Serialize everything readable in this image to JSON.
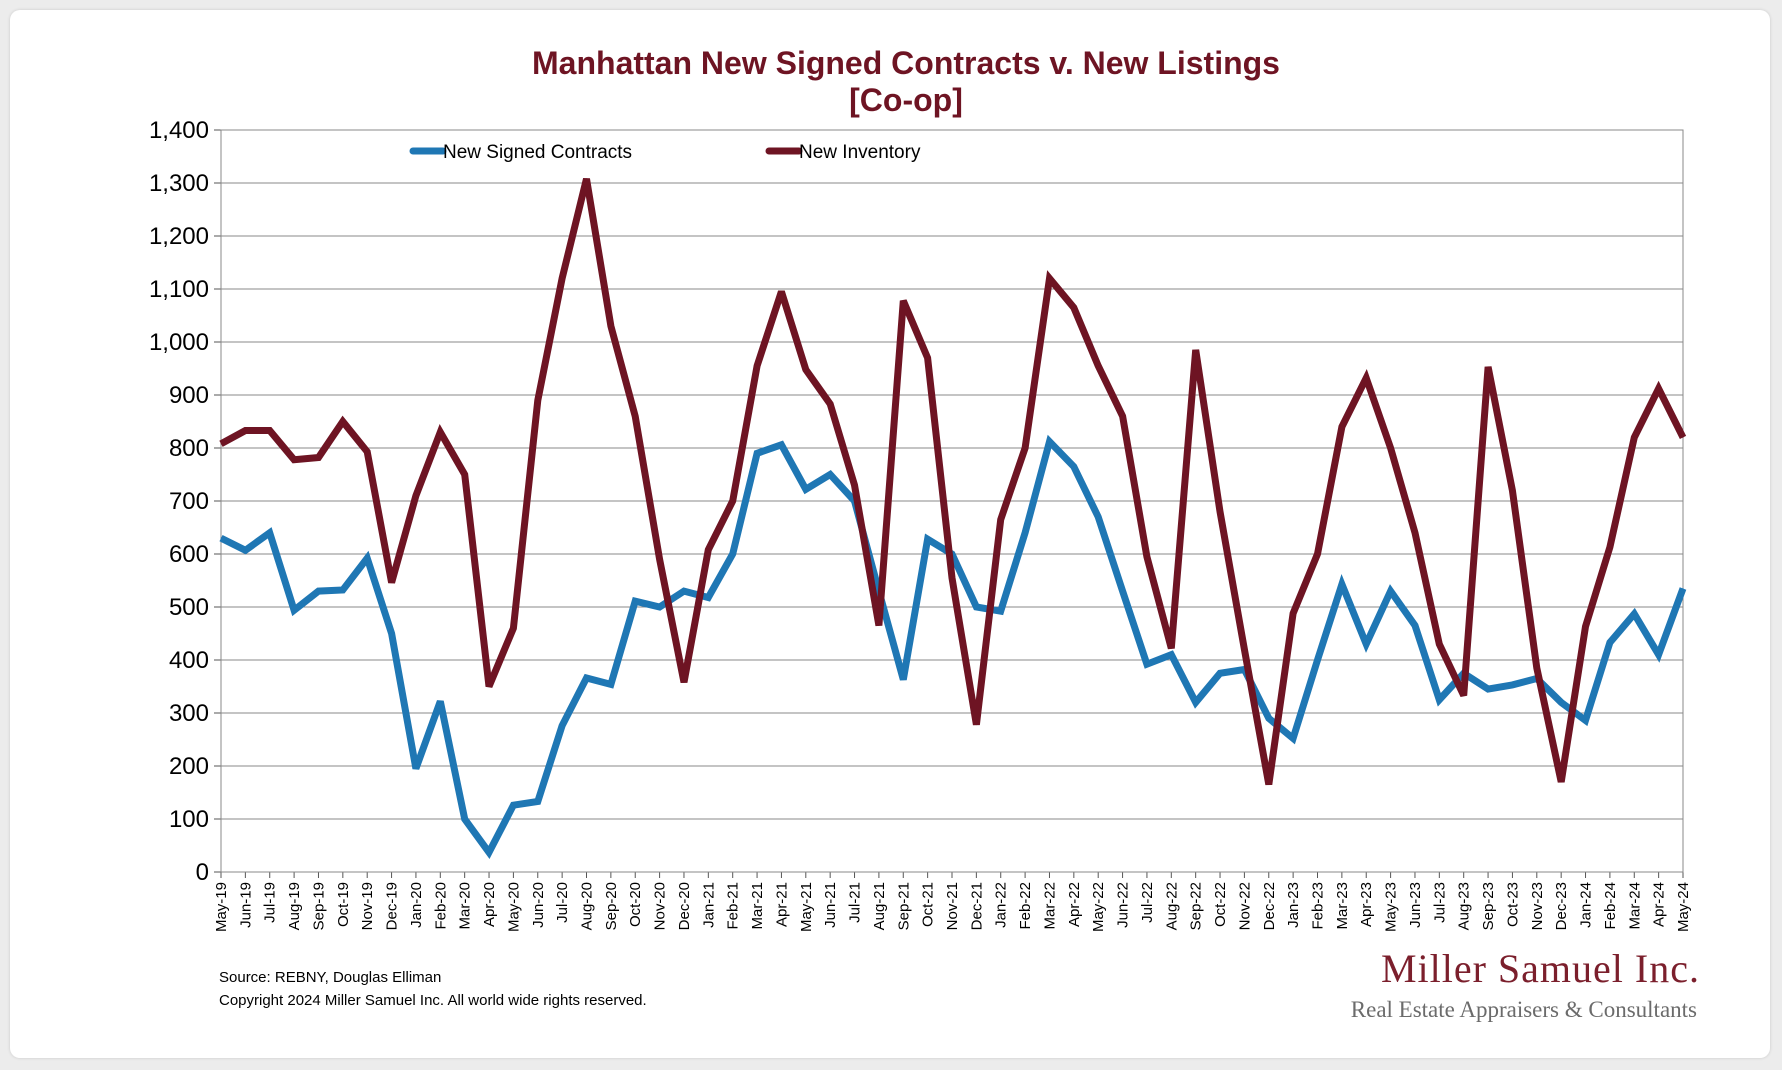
{
  "chart_data": {
    "type": "line",
    "title": "Manhattan New Signed Contracts v. New Listings",
    "subtitle": "[Co-op]",
    "xlabel": "",
    "ylabel": "",
    "ylim": [
      0,
      1400
    ],
    "yticks": [
      "0",
      "100",
      "200",
      "300",
      "400",
      "500",
      "600",
      "700",
      "800",
      "900",
      "1,000",
      "1,100",
      "1,200",
      "1,300",
      "1,400"
    ],
    "grid": true,
    "legend_position": "top-left",
    "categories": [
      "May-19",
      "Jun-19",
      "Jul-19",
      "Aug-19",
      "Sep-19",
      "Oct-19",
      "Nov-19",
      "Dec-19",
      "Jan-20",
      "Feb-20",
      "Mar-20",
      "Apr-20",
      "May-20",
      "Jun-20",
      "Jul-20",
      "Aug-20",
      "Sep-20",
      "Oct-20",
      "Nov-20",
      "Dec-20",
      "Jan-21",
      "Feb-21",
      "Mar-21",
      "Apr-21",
      "May-21",
      "Jun-21",
      "Jul-21",
      "Aug-21",
      "Sep-21",
      "Oct-21",
      "Nov-21",
      "Dec-21",
      "Jan-22",
      "Feb-22",
      "Mar-22",
      "Apr-22",
      "May-22",
      "Jun-22",
      "Jul-22",
      "Aug-22",
      "Sep-22",
      "Oct-22",
      "Nov-22",
      "Dec-22",
      "Jan-23",
      "Feb-23",
      "Mar-23",
      "Apr-23",
      "May-23",
      "Jun-23",
      "Jul-23",
      "Aug-23",
      "Sep-23",
      "Oct-23",
      "Nov-23",
      "Dec-23",
      "Jan-24",
      "Feb-24",
      "Mar-24",
      "Apr-24",
      "May-24"
    ],
    "series": [
      {
        "name": "New Signed Contracts",
        "color": "#1f77b4",
        "values": [
          630,
          607,
          640,
          494,
          530,
          532,
          592,
          450,
          195,
          322,
          100,
          37,
          126,
          133,
          276,
          366,
          354,
          511,
          500,
          530,
          518,
          600,
          790,
          806,
          722,
          750,
          700,
          530,
          363,
          628,
          600,
          500,
          492,
          640,
          812,
          765,
          670,
          530,
          392,
          410,
          320,
          375,
          382,
          290,
          252,
          400,
          543,
          430,
          530,
          465,
          325,
          375,
          345,
          353,
          365,
          320,
          286,
          433,
          487,
          410,
          535
        ]
      },
      {
        "name": "New Inventory",
        "color": "#6e1423",
        "values": [
          808,
          833,
          833,
          778,
          782,
          850,
          793,
          546,
          710,
          830,
          750,
          350,
          460,
          890,
          1120,
          1308,
          1030,
          860,
          590,
          358,
          608,
          700,
          955,
          1095,
          948,
          883,
          730,
          465,
          1078,
          970,
          555,
          278,
          665,
          800,
          1120,
          1065,
          955,
          860,
          595,
          422,
          985,
          680,
          420,
          165,
          488,
          600,
          840,
          932,
          800,
          640,
          430,
          333,
          953,
          720,
          385,
          170,
          463,
          613,
          820,
          912,
          820
        ]
      }
    ]
  },
  "footer": {
    "source": "Source: REBNY, Douglas Elliman",
    "copyright": "Copyright 2024 Miller Samuel Inc.  All world wide rights reserved."
  },
  "logo": {
    "name": "Miller Samuel Inc.",
    "tagline": "Real Estate Appraisers & Consultants"
  }
}
